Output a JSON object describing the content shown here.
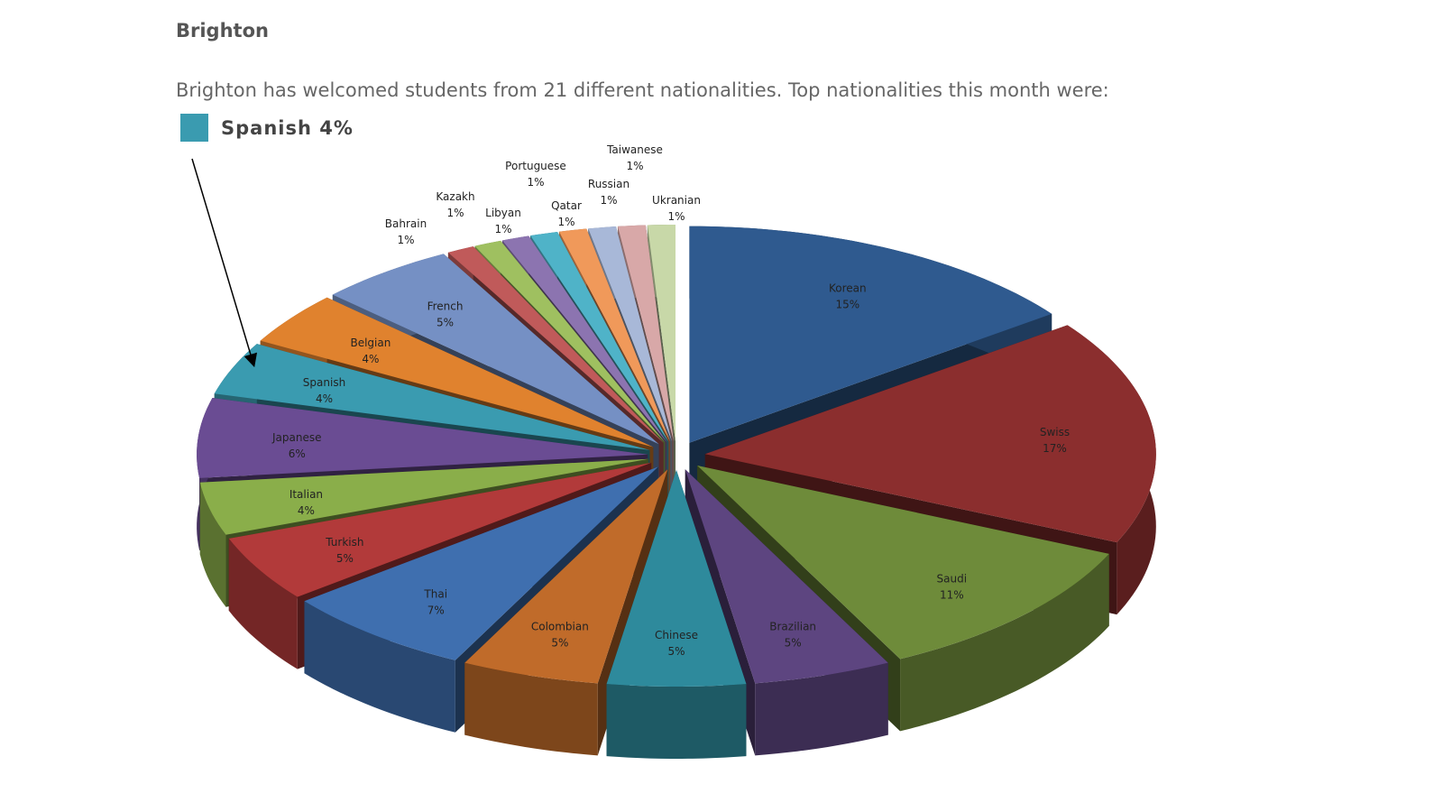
{
  "header": {
    "title": "Brighton",
    "intro": "Brighton has welcomed students from 21 different nationalities. Top nationalities this month were:"
  },
  "legend": {
    "label": "Spanish 4%",
    "color": "#3a9bb0"
  },
  "chart_data": {
    "type": "pie",
    "style": "3d-exploded",
    "title": "",
    "unit": "%",
    "slices": [
      {
        "label": "Korean",
        "value": 15,
        "color": "#2f5a8f"
      },
      {
        "label": "Swiss",
        "value": 17,
        "color": "#8b2e2e"
      },
      {
        "label": "Saudi",
        "value": 11,
        "color": "#6e8b3a"
      },
      {
        "label": "Brazilian",
        "value": 5,
        "color": "#5d4580"
      },
      {
        "label": "Chinese",
        "value": 5,
        "color": "#2e8a9c"
      },
      {
        "label": "Colombian",
        "value": 5,
        "color": "#c06b2a"
      },
      {
        "label": "Thai",
        "value": 7,
        "color": "#3f6faf"
      },
      {
        "label": "Turkish",
        "value": 5,
        "color": "#b23a3a"
      },
      {
        "label": "Italian",
        "value": 4,
        "color": "#8aae4a"
      },
      {
        "label": "Japanese",
        "value": 6,
        "color": "#6a4c93"
      },
      {
        "label": "Spanish",
        "value": 4,
        "color": "#3a9bb0"
      },
      {
        "label": "Belgian",
        "value": 4,
        "color": "#e0822e"
      },
      {
        "label": "French",
        "value": 5,
        "color": "#7590c4"
      },
      {
        "label": "Bahrain",
        "value": 1,
        "color": "#c05a5a"
      },
      {
        "label": "Kazakh",
        "value": 1,
        "color": "#9fc060"
      },
      {
        "label": "Libyan",
        "value": 1,
        "color": "#8c74b0"
      },
      {
        "label": "Portuguese",
        "value": 1,
        "color": "#4fb3c8"
      },
      {
        "label": "Qatar",
        "value": 1,
        "color": "#f0995a"
      },
      {
        "label": "Russian",
        "value": 1,
        "color": "#a8b8d8"
      },
      {
        "label": "Taiwanese",
        "value": 1,
        "color": "#d8a8a8"
      },
      {
        "label": "Ukranian",
        "value": 1,
        "color": "#c8d8a8"
      }
    ],
    "annotation": "arrow pointing to Spanish"
  }
}
